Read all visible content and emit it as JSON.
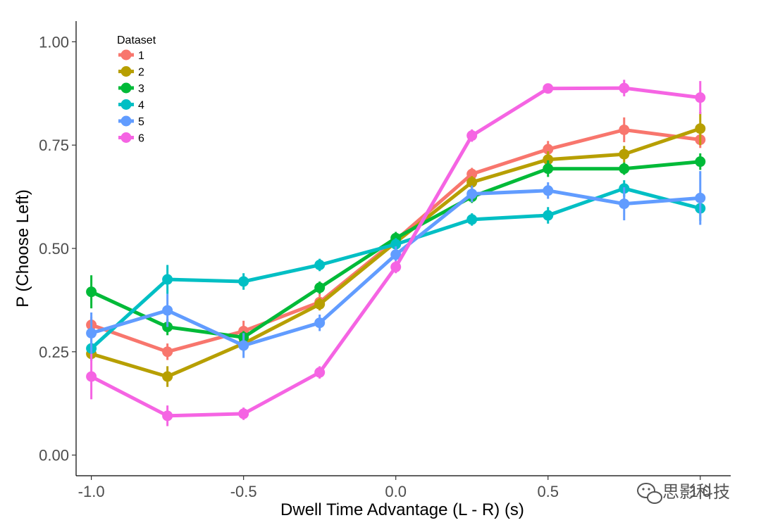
{
  "chart_data": {
    "type": "line",
    "title": "",
    "xlabel": "Dwell Time Advantage (L - R) (s)",
    "ylabel": "P (Choose Left)",
    "x": [
      -1.0,
      -0.75,
      -0.5,
      -0.25,
      0.0,
      0.25,
      0.5,
      0.75,
      1.0
    ],
    "xlim": [
      -1.05,
      1.1
    ],
    "ylim": [
      -0.05,
      1.05
    ],
    "xticks": [
      -1.0,
      -0.5,
      0.0,
      0.5,
      1.0
    ],
    "xtick_labels": [
      "-1.0",
      "-0.5",
      "0.0",
      "0.5",
      "1.0"
    ],
    "yticks": [
      0.0,
      0.25,
      0.5,
      0.75,
      1.0
    ],
    "ytick_labels": [
      "0.00",
      "0.25",
      "0.50",
      "0.75",
      "1.00"
    ],
    "grid": false,
    "legend": {
      "title": "Dataset",
      "position": "top-left"
    },
    "series": [
      {
        "name": "1",
        "color": "#F8766D",
        "values": [
          0.315,
          0.25,
          0.3,
          0.37,
          0.52,
          0.68,
          0.74,
          0.787,
          0.763
        ],
        "error": [
          0.02,
          0.02,
          0.025,
          0.02,
          0.015,
          0.015,
          0.02,
          0.03,
          0.02
        ]
      },
      {
        "name": "2",
        "color": "#B79F00",
        "values": [
          0.245,
          0.19,
          0.27,
          0.365,
          0.515,
          0.66,
          0.715,
          0.728,
          0.79
        ],
        "error": [
          0.015,
          0.025,
          0.02,
          0.015,
          0.015,
          0.015,
          0.02,
          0.02,
          0.04
        ]
      },
      {
        "name": "3",
        "color": "#00BA38",
        "values": [
          0.395,
          0.31,
          0.285,
          0.405,
          0.525,
          0.625,
          0.693,
          0.693,
          0.71
        ],
        "error": [
          0.04,
          0.02,
          0.015,
          0.015,
          0.015,
          0.015,
          0.02,
          0.015,
          0.02
        ]
      },
      {
        "name": "4",
        "color": "#00BFC4",
        "values": [
          0.258,
          0.425,
          0.42,
          0.46,
          0.51,
          0.57,
          0.58,
          0.645,
          0.597
        ],
        "error": [
          0.03,
          0.035,
          0.02,
          0.015,
          0.015,
          0.015,
          0.02,
          0.02,
          0.03
        ]
      },
      {
        "name": "5",
        "color": "#619CFF",
        "values": [
          0.295,
          0.35,
          0.265,
          0.32,
          0.485,
          0.632,
          0.64,
          0.608,
          0.622
        ],
        "error": [
          0.05,
          0.04,
          0.03,
          0.02,
          0.02,
          0.02,
          0.02,
          0.04,
          0.065
        ]
      },
      {
        "name": "6",
        "color": "#F564E3",
        "values": [
          0.19,
          0.095,
          0.1,
          0.2,
          0.455,
          0.773,
          0.887,
          0.888,
          0.865
        ],
        "error": [
          0.055,
          0.025,
          0.015,
          0.015,
          0.015,
          0.015,
          0.01,
          0.02,
          0.04
        ]
      }
    ]
  },
  "watermark": {
    "text": "思影科技",
    "icon": "wechat-icon"
  }
}
